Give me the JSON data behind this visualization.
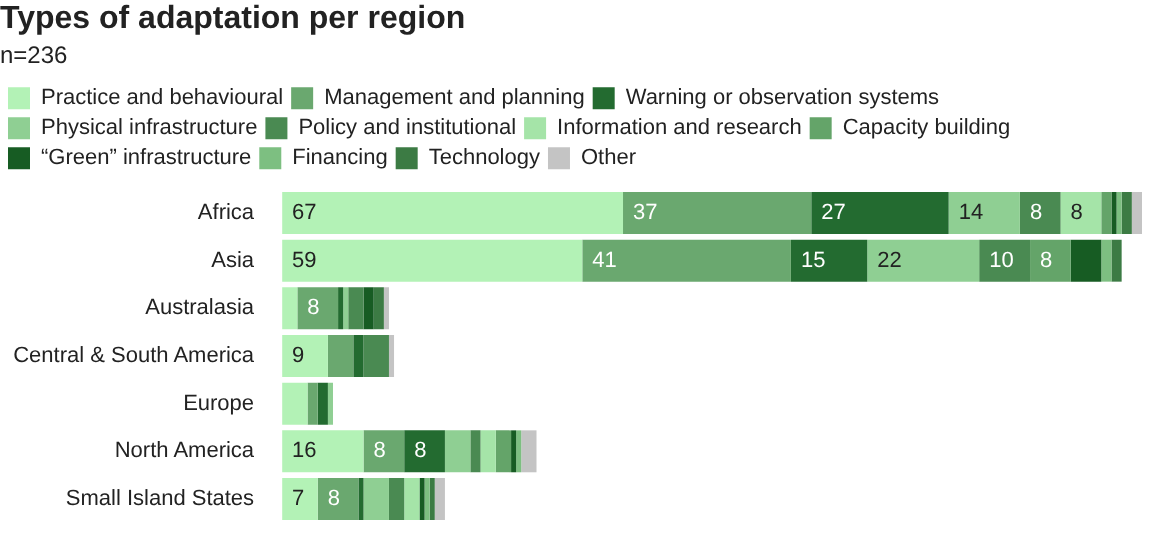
{
  "chart_data": {
    "type": "bar",
    "orientation": "horizontal",
    "stacked": true,
    "title": "Types of adaptation per region",
    "subtitle": "n=236",
    "legend": "top",
    "categories": [
      "Africa",
      "Asia",
      "Australasia",
      "Central & South America",
      "Europe",
      "North America",
      "Small Island States"
    ],
    "series": [
      {
        "name": "Practice and behavioural",
        "color": "#b3f2b6",
        "values": [
          67,
          59,
          3,
          9,
          5,
          16,
          7
        ],
        "value_labels": [
          "67",
          "59",
          null,
          "9",
          null,
          "16",
          "7"
        ]
      },
      {
        "name": "Management and planning",
        "color": "#6aa86f",
        "values": [
          37,
          41,
          8,
          5,
          2,
          8,
          8
        ],
        "value_labels": [
          "37",
          "41",
          "8",
          null,
          null,
          "8",
          "8"
        ]
      },
      {
        "name": "Warning or observation systems",
        "color": "#236b30",
        "values": [
          27,
          15,
          1,
          2,
          2,
          8,
          1
        ],
        "value_labels": [
          "27",
          "15",
          null,
          null,
          null,
          "8",
          null
        ]
      },
      {
        "name": "Physical infrastructure",
        "color": "#8fcf93",
        "values": [
          14,
          22,
          1,
          0,
          1,
          5,
          5
        ],
        "value_labels": [
          "14",
          "22",
          null,
          null,
          null,
          null,
          null
        ]
      },
      {
        "name": "Policy and institutional",
        "color": "#4a8a52",
        "values": [
          8,
          10,
          3,
          5,
          0,
          2,
          3
        ],
        "value_labels": [
          "8",
          "10",
          null,
          null,
          null,
          null,
          null
        ]
      },
      {
        "name": "Information and research",
        "color": "#a5e4a8",
        "values": [
          8,
          0,
          0,
          0,
          0,
          3,
          3
        ],
        "value_labels": [
          "8",
          null,
          null,
          null,
          null,
          null,
          null
        ]
      },
      {
        "name": "Capacity building",
        "color": "#64a469",
        "values": [
          2,
          8,
          0,
          0,
          0,
          3,
          0
        ],
        "value_labels": [
          null,
          "8",
          null,
          null,
          null,
          null,
          null
        ]
      },
      {
        "name": "“Green” infrastructure",
        "color": "#175c23",
        "values": [
          1,
          6,
          2,
          0,
          0,
          1,
          1
        ],
        "value_labels": [
          null,
          null,
          null,
          null,
          null,
          null,
          null
        ]
      },
      {
        "name": "Financing",
        "color": "#7dbf81",
        "values": [
          1,
          2,
          0,
          0,
          0,
          1,
          1
        ],
        "value_labels": [
          null,
          null,
          null,
          null,
          null,
          null,
          null
        ]
      },
      {
        "name": "Technology",
        "color": "#3c7b44",
        "values": [
          2,
          2,
          2,
          0,
          0,
          0,
          1
        ],
        "value_labels": [
          null,
          null,
          null,
          null,
          null,
          null,
          null
        ]
      },
      {
        "name": "Other",
        "color": "#c4c4c4",
        "values": [
          2,
          0,
          1,
          1,
          0,
          3,
          2
        ],
        "value_labels": [
          null,
          null,
          null,
          null,
          null,
          null,
          null
        ]
      }
    ]
  }
}
